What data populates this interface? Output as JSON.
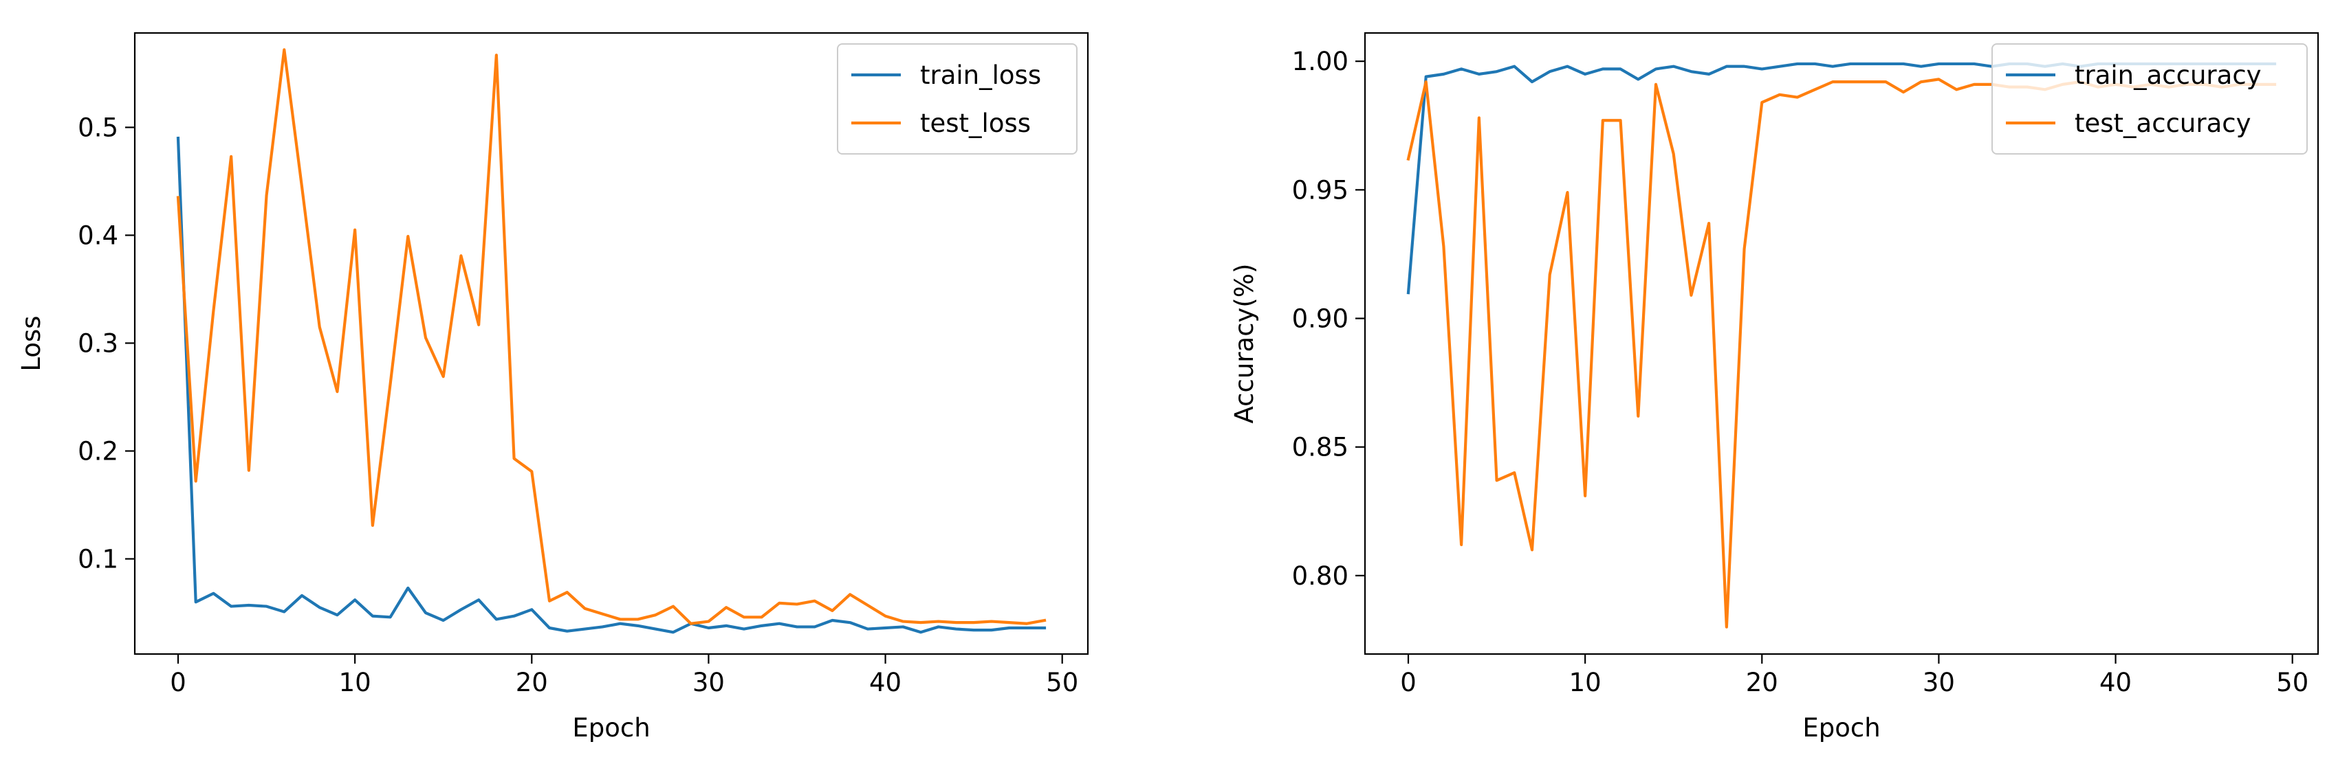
{
  "chart_data": [
    {
      "type": "line",
      "title": "",
      "xlabel": "Epoch",
      "ylabel": "Loss",
      "xlim": [
        -2.45,
        51.45
      ],
      "ylim": [
        0.0118,
        0.5875
      ],
      "xticks": [
        0,
        10,
        20,
        30,
        40,
        50
      ],
      "xtick_labels": [
        "0",
        "10",
        "20",
        "30",
        "40",
        "50"
      ],
      "yticks": [
        0.1,
        0.2,
        0.3,
        0.4,
        0.5
      ],
      "ytick_labels": [
        "0.1",
        "0.2",
        "0.3",
        "0.4",
        "0.5"
      ],
      "grid": false,
      "legend_position": "upper right",
      "x": [
        0,
        1,
        2,
        3,
        4,
        5,
        6,
        7,
        8,
        9,
        10,
        11,
        12,
        13,
        14,
        15,
        16,
        17,
        18,
        19,
        20,
        21,
        22,
        23,
        24,
        25,
        26,
        27,
        28,
        29,
        30,
        31,
        32,
        33,
        34,
        35,
        36,
        37,
        38,
        39,
        40,
        41,
        42,
        43,
        44,
        45,
        46,
        47,
        48,
        49
      ],
      "series": [
        {
          "name": "train_loss",
          "color": "#1f77b4",
          "values": [
            0.49,
            0.06,
            0.068,
            0.056,
            0.057,
            0.056,
            0.051,
            0.066,
            0.055,
            0.048,
            0.062,
            0.047,
            0.046,
            0.073,
            0.05,
            0.043,
            0.053,
            0.062,
            0.044,
            0.047,
            0.053,
            0.036,
            0.033,
            0.035,
            0.037,
            0.04,
            0.038,
            0.035,
            0.032,
            0.04,
            0.036,
            0.038,
            0.035,
            0.038,
            0.04,
            0.037,
            0.037,
            0.043,
            0.041,
            0.035,
            0.036,
            0.037,
            0.032,
            0.037,
            0.035,
            0.034,
            0.034,
            0.036,
            0.036,
            0.036
          ]
        },
        {
          "name": "test_loss",
          "color": "#ff7f0e",
          "values": [
            0.435,
            0.172,
            0.33,
            0.473,
            0.182,
            0.437,
            0.572,
            0.445,
            0.315,
            0.255,
            0.405,
            0.131,
            0.262,
            0.399,
            0.305,
            0.269,
            0.381,
            0.317,
            0.567,
            0.193,
            0.181,
            0.061,
            0.069,
            0.054,
            0.049,
            0.044,
            0.044,
            0.048,
            0.056,
            0.04,
            0.042,
            0.055,
            0.046,
            0.046,
            0.059,
            0.058,
            0.061,
            0.052,
            0.067,
            0.057,
            0.047,
            0.042,
            0.041,
            0.042,
            0.041,
            0.041,
            0.042,
            0.041,
            0.04,
            0.043
          ]
        }
      ]
    },
    {
      "type": "line",
      "title": "",
      "xlabel": "Epoch",
      "ylabel": "Accuracy(%)",
      "xlim": [
        -2.45,
        51.45
      ],
      "ylim": [
        0.7695,
        1.011
      ],
      "xticks": [
        0,
        10,
        20,
        30,
        40,
        50
      ],
      "xtick_labels": [
        "0",
        "10",
        "20",
        "30",
        "40",
        "50"
      ],
      "yticks": [
        0.8,
        0.85,
        0.9,
        0.95,
        1.0
      ],
      "ytick_labels": [
        "0.80",
        "0.85",
        "0.90",
        "0.95",
        "1.00"
      ],
      "grid": false,
      "legend_position": "upper right",
      "x": [
        0,
        1,
        2,
        3,
        4,
        5,
        6,
        7,
        8,
        9,
        10,
        11,
        12,
        13,
        14,
        15,
        16,
        17,
        18,
        19,
        20,
        21,
        22,
        23,
        24,
        25,
        26,
        27,
        28,
        29,
        30,
        31,
        32,
        33,
        34,
        35,
        36,
        37,
        38,
        39,
        40,
        41,
        42,
        43,
        44,
        45,
        46,
        47,
        48,
        49
      ],
      "series": [
        {
          "name": "train_accuracy",
          "color": "#1f77b4",
          "values": [
            0.91,
            0.994,
            0.995,
            0.997,
            0.995,
            0.996,
            0.998,
            0.992,
            0.996,
            0.998,
            0.995,
            0.997,
            0.997,
            0.993,
            0.997,
            0.998,
            0.996,
            0.995,
            0.998,
            0.998,
            0.997,
            0.998,
            0.999,
            0.999,
            0.998,
            0.999,
            0.999,
            0.999,
            0.999,
            0.998,
            0.999,
            0.999,
            0.999,
            0.998,
            0.999,
            0.999,
            0.998,
            0.999,
            0.998,
            0.999,
            0.999,
            0.999,
            0.999,
            0.999,
            0.999,
            0.999,
            0.999,
            0.999,
            0.999,
            0.999
          ]
        },
        {
          "name": "test_accuracy",
          "color": "#ff7f0e",
          "values": [
            0.962,
            0.992,
            0.928,
            0.812,
            0.978,
            0.837,
            0.84,
            0.81,
            0.917,
            0.949,
            0.831,
            0.977,
            0.977,
            0.862,
            0.991,
            0.964,
            0.909,
            0.937,
            0.78,
            0.927,
            0.984,
            0.987,
            0.986,
            0.989,
            0.992,
            0.992,
            0.992,
            0.992,
            0.988,
            0.992,
            0.993,
            0.989,
            0.991,
            0.991,
            0.99,
            0.99,
            0.989,
            0.991,
            0.992,
            0.99,
            0.991,
            0.99,
            0.991,
            0.99,
            0.991,
            0.991,
            0.99,
            0.991,
            0.991,
            0.991
          ]
        }
      ]
    }
  ]
}
